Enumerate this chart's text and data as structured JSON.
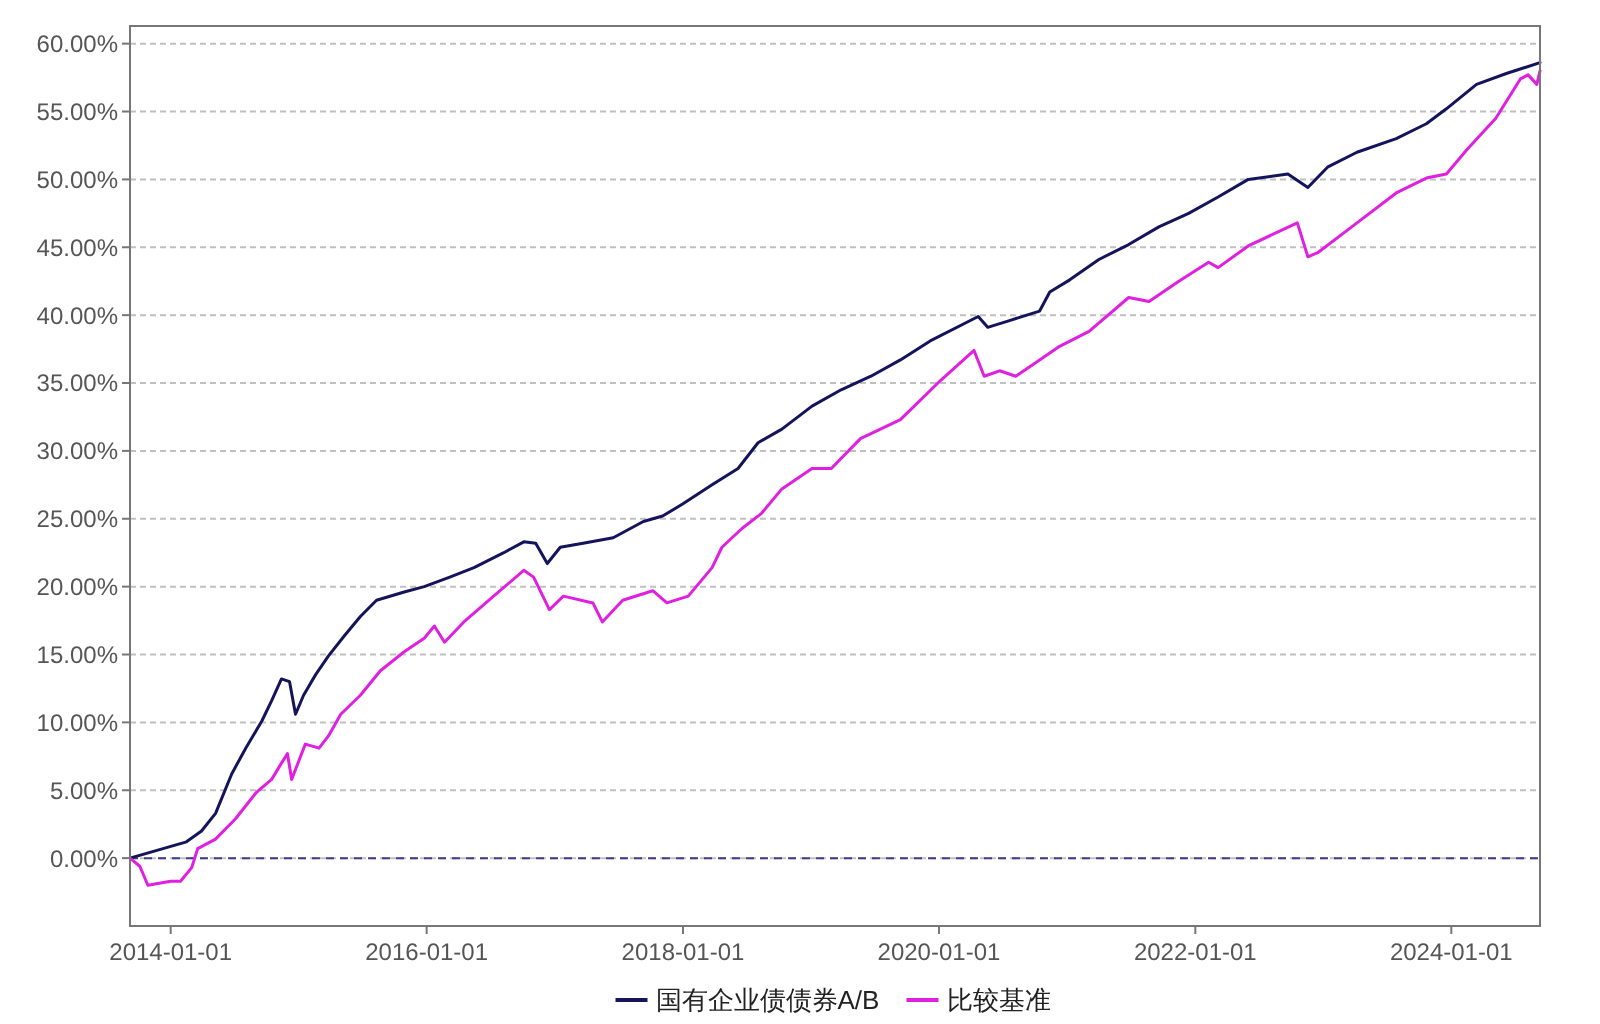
{
  "chart_data": {
    "type": "line",
    "xlim": [
      "2013-09-07",
      "2024-09-10"
    ],
    "xticks": [
      "2014-01-01",
      "2016-01-01",
      "2018-01-01",
      "2020-01-01",
      "2022-01-01",
      "2024-01-01"
    ],
    "ylim": [
      -5,
      61.3
    ],
    "yticks": [
      {
        "value": 0,
        "label": "0.00%"
      },
      {
        "value": 5,
        "label": "5.00%"
      },
      {
        "value": 10,
        "label": "10.00%"
      },
      {
        "value": 15,
        "label": "15.00%"
      },
      {
        "value": 20,
        "label": "20.00%"
      },
      {
        "value": 25,
        "label": "25.00%"
      },
      {
        "value": 30,
        "label": "30.00%"
      },
      {
        "value": 35,
        "label": "35.00%"
      },
      {
        "value": 40,
        "label": "40.00%"
      },
      {
        "value": 45,
        "label": "45.00%"
      },
      {
        "value": 50,
        "label": "50.00%"
      },
      {
        "value": 55,
        "label": "55.00%"
      },
      {
        "value": 60,
        "label": "60.00%"
      }
    ],
    "grid": "y",
    "legend": "bottom",
    "line_style": "solid",
    "marker": "none",
    "ref_lines": [
      {
        "axis": "y",
        "value": 0,
        "color": "#3b3b8c",
        "line_style": "dashed"
      }
    ],
    "series": [
      {
        "name": "国有企业债债券A/B",
        "color": "#14145a",
        "x": [
          "2013-09-07",
          "2014-02-15",
          "2014-03-30",
          "2014-05-09",
          "2014-06-24",
          "2014-08-03",
          "2014-09-18",
          "2014-10-16",
          "2014-11-13",
          "2014-12-06",
          "2014-12-23",
          "2015-01-15",
          "2015-02-18",
          "2015-03-27",
          "2015-05-12",
          "2015-06-26",
          "2015-08-11",
          "2015-10-29",
          "2015-12-25",
          "2016-03-07",
          "2016-05-15",
          "2016-08-08",
          "2016-10-04",
          "2016-11-07",
          "2016-12-10",
          "2017-01-16",
          "2017-03-22",
          "2017-06-16",
          "2017-09-10",
          "2017-11-04",
          "2018-01-01",
          "2018-03-25",
          "2018-06-07",
          "2018-08-03",
          "2018-10-10",
          "2019-01-04",
          "2019-03-28",
          "2019-06-21",
          "2019-09-13",
          "2019-12-07",
          "2020-04-22",
          "2020-05-19",
          "2020-07-20",
          "2020-10-14",
          "2020-11-12",
          "2021-01-08",
          "2021-04-01",
          "2021-06-25",
          "2021-09-19",
          "2021-12-13",
          "2022-03-07",
          "2022-06-01",
          "2022-09-22",
          "2022-11-18",
          "2023-01-13",
          "2023-04-07",
          "2023-07-28",
          "2023-10-22",
          "2023-12-18",
          "2024-03-13",
          "2024-06-06",
          "2024-09-10"
        ],
        "values": [
          0,
          1.2,
          2.0,
          3.3,
          6.2,
          8.1,
          10.1,
          11.6,
          13.2,
          13.0,
          10.6,
          12.0,
          13.5,
          14.9,
          16.4,
          17.8,
          19.0,
          19.6,
          20.0,
          20.7,
          21.4,
          22.5,
          23.3,
          23.2,
          21.7,
          22.9,
          23.2,
          23.6,
          24.8,
          25.2,
          26.1,
          27.5,
          28.7,
          30.6,
          31.6,
          33.3,
          34.5,
          35.5,
          36.7,
          38.1,
          39.9,
          39.1,
          39.6,
          40.3,
          41.7,
          42.6,
          44.1,
          45.2,
          46.5,
          47.5,
          48.7,
          50.0,
          50.4,
          49.4,
          50.9,
          52.0,
          53.0,
          54.1,
          55.2,
          57.0,
          57.8,
          58.6
        ]
      },
      {
        "name": "比较基准",
        "color": "#e020e0",
        "x": [
          "2013-09-07",
          "2013-10-05",
          "2013-10-28",
          "2014-01-01",
          "2014-01-29",
          "2014-03-02",
          "2014-03-19",
          "2014-05-09",
          "2014-07-05",
          "2014-09-01",
          "2014-10-16",
          "2014-11-13",
          "2014-11-30",
          "2014-12-12",
          "2015-01-20",
          "2015-02-28",
          "2015-03-27",
          "2015-05-01",
          "2015-06-26",
          "2015-08-22",
          "2015-10-29",
          "2015-12-25",
          "2016-01-23",
          "2016-02-21",
          "2016-04-16",
          "2016-07-10",
          "2016-10-04",
          "2016-11-01",
          "2016-12-16",
          "2017-01-25",
          "2017-04-19",
          "2017-05-16",
          "2017-07-13",
          "2017-10-07",
          "2017-11-16",
          "2018-01-16",
          "2018-03-25",
          "2018-04-22",
          "2018-06-19",
          "2018-08-13",
          "2018-10-10",
          "2019-01-04",
          "2019-02-28",
          "2019-05-22",
          "2019-09-13",
          "2020-01-06",
          "2020-04-10",
          "2020-05-09",
          "2020-06-22",
          "2020-08-07",
          "2020-10-14",
          "2020-12-10",
          "2021-03-04",
          "2021-06-25",
          "2021-08-22",
          "2021-11-15",
          "2022-02-08",
          "2022-03-07",
          "2022-06-01",
          "2022-10-19",
          "2022-11-18",
          "2022-12-16",
          "2023-04-07",
          "2023-07-28",
          "2023-10-22",
          "2023-12-18",
          "2024-02-15",
          "2024-05-07",
          "2024-07-16",
          "2024-08-07",
          "2024-09-01",
          "2024-09-10"
        ],
        "values": [
          0,
          -0.6,
          -2.0,
          -1.7,
          -1.7,
          -0.7,
          0.7,
          1.4,
          2.9,
          4.8,
          5.8,
          7.0,
          7.7,
          5.8,
          8.4,
          8.1,
          9.0,
          10.6,
          12.0,
          13.8,
          15.2,
          16.2,
          17.1,
          15.9,
          17.4,
          19.3,
          21.2,
          20.7,
          18.3,
          19.3,
          18.8,
          17.4,
          19.0,
          19.7,
          18.8,
          19.3,
          21.4,
          22.9,
          24.3,
          25.4,
          27.2,
          28.7,
          28.7,
          30.9,
          32.3,
          35.2,
          37.4,
          35.5,
          35.9,
          35.5,
          36.7,
          37.7,
          38.8,
          41.3,
          41.0,
          42.5,
          43.9,
          43.5,
          45.1,
          46.8,
          44.3,
          44.6,
          46.8,
          49.0,
          50.1,
          50.4,
          52.2,
          54.5,
          57.4,
          57.7,
          57.0,
          58.0
        ]
      }
    ]
  }
}
